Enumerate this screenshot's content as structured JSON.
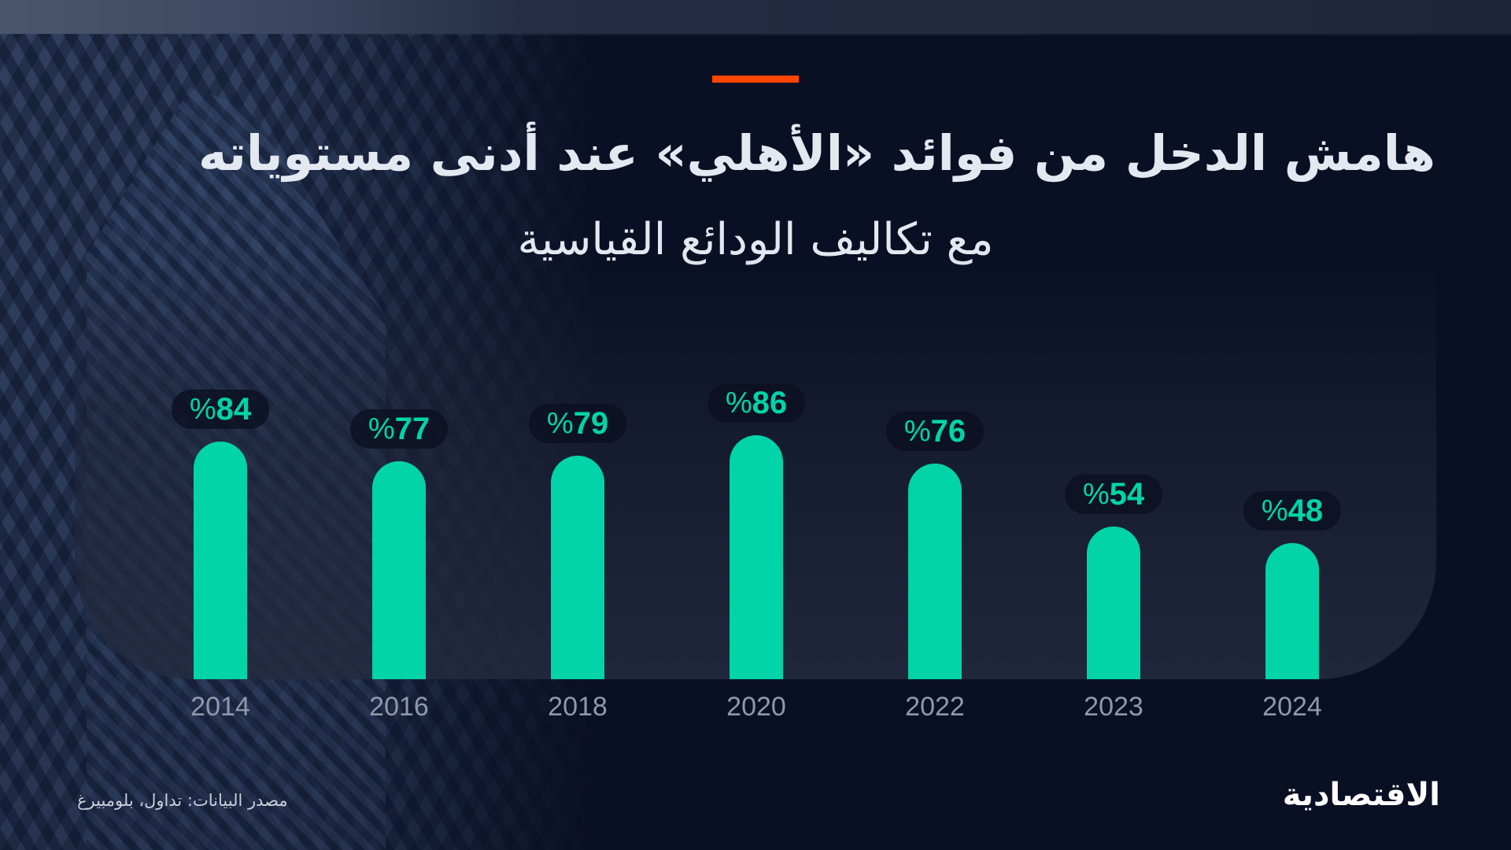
{
  "header": {
    "accent_color": "#ff4500",
    "title": "هامش الدخل من فوائد «الأهلي» عند أدنى مستوياته",
    "subtitle": "مع تكاليف الودائع القياسية"
  },
  "colors": {
    "background": "#0a1024",
    "panel": "#1e2438",
    "bar": "#00d4a8",
    "label_text": "#00d4a8",
    "year_text": "#8f99ab",
    "title_text": "#e4e8f0"
  },
  "chart_data": {
    "type": "bar",
    "title": "هامش الدخل من فوائد «الأهلي» عند أدنى مستوياته",
    "subtitle": "مع تكاليف الودائع القياسية",
    "categories": [
      "2014",
      "2016",
      "2018",
      "2020",
      "2022",
      "2023",
      "2024"
    ],
    "values": [
      84,
      77,
      79,
      86,
      76,
      54,
      48
    ],
    "value_labels": [
      "%84",
      "%77",
      "%79",
      "%86",
      "%76",
      "%54",
      "%48"
    ],
    "unit": "%",
    "xlabel": "",
    "ylabel": "",
    "ylim": [
      0,
      100
    ],
    "grid": false,
    "legend": "none"
  },
  "bars": [
    {
      "year": "2014",
      "value": 84,
      "pct": "%",
      "num": "84"
    },
    {
      "year": "2016",
      "value": 77,
      "pct": "%",
      "num": "77"
    },
    {
      "year": "2018",
      "value": 79,
      "pct": "%",
      "num": "79"
    },
    {
      "year": "2020",
      "value": 86,
      "pct": "%",
      "num": "86"
    },
    {
      "year": "2022",
      "value": 76,
      "pct": "%",
      "num": "76"
    },
    {
      "year": "2023",
      "value": 54,
      "pct": "%",
      "num": "54"
    },
    {
      "year": "2024",
      "value": 48,
      "pct": "%",
      "num": "48"
    }
  ],
  "footer": {
    "source": "مصدر البيانات: تداول، بلومبيرغ",
    "logo": "الاقتصادية"
  }
}
